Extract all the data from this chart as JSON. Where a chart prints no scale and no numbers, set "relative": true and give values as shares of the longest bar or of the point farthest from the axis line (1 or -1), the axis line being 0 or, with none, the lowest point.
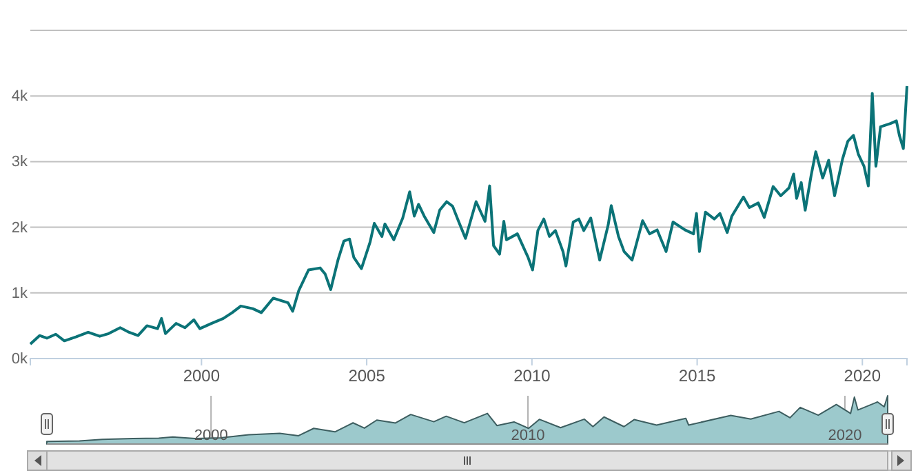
{
  "chart_data": [
    {
      "type": "line",
      "color": "#0b7377",
      "grid": "y",
      "x": [
        1994.82,
        1995.1,
        1995.32,
        1995.59,
        1995.85,
        1996.2,
        1996.57,
        1996.92,
        1997.19,
        1997.54,
        1997.81,
        1998.08,
        1998.35,
        1998.67,
        1998.79,
        1998.91,
        1999.23,
        1999.5,
        1999.77,
        1999.95,
        2000.3,
        2000.66,
        2000.93,
        2001.19,
        2001.55,
        2001.81,
        2002.17,
        2002.62,
        2002.76,
        2002.94,
        2003.24,
        2003.59,
        2003.74,
        2003.91,
        2004.13,
        2004.31,
        2004.48,
        2004.61,
        2004.84,
        2005.1,
        2005.23,
        2005.46,
        2005.55,
        2005.82,
        2006.09,
        2006.3,
        2006.44,
        2006.57,
        2006.74,
        2007.03,
        2007.21,
        2007.42,
        2007.6,
        2007.78,
        2007.99,
        2008.31,
        2008.58,
        2008.72,
        2008.84,
        2009.02,
        2009.15,
        2009.23,
        2009.56,
        2009.88,
        2010.02,
        2010.18,
        2010.36,
        2010.53,
        2010.71,
        2010.94,
        2011.03,
        2011.25,
        2011.42,
        2011.57,
        2011.78,
        2012.05,
        2012.31,
        2012.4,
        2012.62,
        2012.79,
        2013.03,
        2013.35,
        2013.56,
        2013.79,
        2014.06,
        2014.27,
        2014.63,
        2014.89,
        2014.98,
        2015.07,
        2015.25,
        2015.52,
        2015.69,
        2015.91,
        2016.05,
        2016.4,
        2016.58,
        2016.85,
        2017.03,
        2017.3,
        2017.53,
        2017.78,
        2017.92,
        2018.01,
        2018.15,
        2018.27,
        2018.45,
        2018.59,
        2018.8,
        2018.98,
        2019.16,
        2019.4,
        2019.56,
        2019.73,
        2019.88,
        2020.05,
        2020.18,
        2020.3,
        2020.41,
        2020.55,
        2020.85,
        2021.03,
        2021.12,
        2021.24,
        2021.35
      ],
      "values": [
        220,
        350,
        310,
        370,
        270,
        330,
        400,
        340,
        380,
        470,
        400,
        350,
        500,
        455,
        610,
        380,
        535,
        470,
        590,
        455,
        535,
        610,
        700,
        800,
        760,
        700,
        920,
        850,
        720,
        1030,
        1350,
        1380,
        1290,
        1050,
        1500,
        1790,
        1820,
        1540,
        1370,
        1770,
        2060,
        1860,
        2050,
        1810,
        2140,
        2540,
        2170,
        2350,
        2170,
        1920,
        2260,
        2390,
        2320,
        2090,
        1830,
        2390,
        2090,
        2630,
        1720,
        1590,
        2090,
        1810,
        1900,
        1545,
        1350,
        1950,
        2125,
        1860,
        1950,
        1630,
        1410,
        2080,
        2125,
        1950,
        2140,
        1500,
        2040,
        2330,
        1860,
        1630,
        1500,
        2100,
        1900,
        1960,
        1630,
        2080,
        1960,
        1900,
        2210,
        1630,
        2230,
        2125,
        2210,
        1920,
        2170,
        2460,
        2300,
        2370,
        2150,
        2620,
        2480,
        2600,
        2810,
        2440,
        2680,
        2260,
        2790,
        3150,
        2750,
        3020,
        2480,
        3040,
        3310,
        3400,
        3110,
        2930,
        2630,
        4040,
        2930,
        3530,
        3580,
        3620,
        3400,
        3200,
        4150
      ],
      "xlim": [
        1994.82,
        2021.35
      ],
      "xticks": [
        2000,
        2005,
        2010,
        2015,
        2020
      ],
      "ylim": [
        0,
        5000
      ],
      "yticks": [
        {
          "value": 0,
          "label": "0k"
        },
        {
          "value": 1000,
          "label": "1k"
        },
        {
          "value": 2000,
          "label": "2k"
        },
        {
          "value": 3000,
          "label": "3k"
        },
        {
          "value": 4000,
          "label": "4k"
        },
        {
          "value": 5000,
          "label": null
        }
      ]
    },
    {
      "type": "area",
      "color": "#9cc9cc",
      "relative": true,
      "grid": "x",
      "x": [
        1994.82,
        1995.85,
        1996.57,
        1997.54,
        1998.35,
        1998.79,
        1999.5,
        2000.3,
        2001.19,
        2002.17,
        2002.76,
        2003.24,
        2003.91,
        2004.48,
        2004.84,
        2005.23,
        2005.82,
        2006.3,
        2007.03,
        2007.42,
        2007.99,
        2008.72,
        2009.02,
        2009.56,
        2010.02,
        2010.36,
        2011.03,
        2011.78,
        2012.05,
        2012.4,
        2013.03,
        2013.35,
        2014.06,
        2014.98,
        2015.07,
        2016.4,
        2017.03,
        2017.92,
        2018.27,
        2018.59,
        2019.16,
        2019.73,
        2020.18,
        2020.3,
        2020.41,
        2021.03,
        2021.24,
        2021.35
      ],
      "values": [
        0.053,
        0.065,
        0.096,
        0.113,
        0.12,
        0.147,
        0.113,
        0.129,
        0.193,
        0.222,
        0.173,
        0.325,
        0.253,
        0.439,
        0.33,
        0.496,
        0.436,
        0.612,
        0.463,
        0.576,
        0.441,
        0.634,
        0.383,
        0.458,
        0.325,
        0.512,
        0.34,
        0.516,
        0.361,
        0.561,
        0.361,
        0.506,
        0.393,
        0.533,
        0.393,
        0.593,
        0.518,
        0.677,
        0.545,
        0.759,
        0.598,
        0.819,
        0.634,
        0.973,
        0.706,
        0.872,
        0.771,
        1
      ],
      "xlim": [
        1994.82,
        2021.35
      ],
      "xticks": [
        2000,
        2010,
        2020
      ]
    }
  ]
}
